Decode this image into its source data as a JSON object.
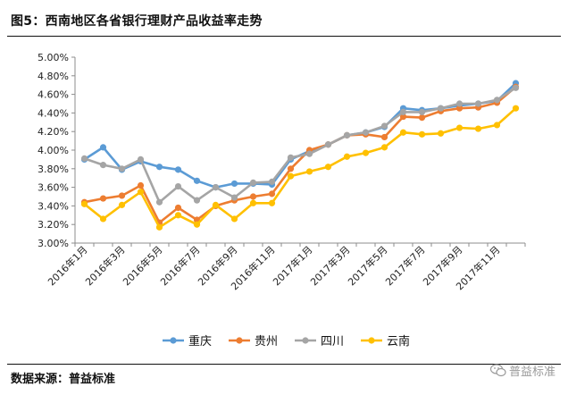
{
  "page": {
    "figure_title": "图5：西南地区各省银行理财产品收益率走势",
    "source_text": "数据来源：普益标准",
    "watermark_text": "普益标准"
  },
  "chart_data": {
    "type": "line",
    "title": "图5：西南地区各省银行理财产品收益率走势",
    "xlabel": "",
    "ylabel": "",
    "ylim": [
      3.0,
      5.0
    ],
    "yticks": [
      "3.00%",
      "3.20%",
      "3.40%",
      "3.60%",
      "3.80%",
      "4.00%",
      "4.20%",
      "4.40%",
      "4.60%",
      "4.80%",
      "5.00%"
    ],
    "grid": false,
    "legend": "bottom",
    "categories": [
      "2016年1月",
      "2016年2月",
      "2016年3月",
      "2016年4月",
      "2016年5月",
      "2016年6月",
      "2016年7月",
      "2016年8月",
      "2016年9月",
      "2016年10月",
      "2016年11月",
      "2016年12月",
      "2017年1月",
      "2017年2月",
      "2017年3月",
      "2017年4月",
      "2017年5月",
      "2017年6月",
      "2017年7月",
      "2017年8月",
      "2017年9月",
      "2017年10月",
      "2017年11月",
      "2017年12月"
    ],
    "xticks": [
      "2016年1月",
      "2016年3月",
      "2016年5月",
      "2016年7月",
      "2016年9月",
      "2016年11月",
      "2017年1月",
      "2017年3月",
      "2017年5月",
      "2017年7月",
      "2017年9月",
      "2017年11月"
    ],
    "series": [
      {
        "name": "重庆",
        "color": "#5b9bd5",
        "values": [
          3.9,
          4.03,
          3.79,
          3.88,
          3.82,
          3.79,
          3.67,
          3.6,
          3.64,
          3.64,
          3.63,
          3.9,
          3.99,
          4.06,
          4.16,
          4.19,
          4.25,
          4.45,
          4.43,
          4.45,
          4.48,
          4.5,
          4.53,
          4.72
        ]
      },
      {
        "name": "贵州",
        "color": "#ed7d31",
        "values": [
          3.44,
          3.48,
          3.51,
          3.62,
          3.22,
          3.38,
          3.25,
          3.4,
          3.46,
          3.5,
          3.53,
          3.8,
          4.0,
          4.06,
          4.16,
          4.17,
          4.14,
          4.36,
          4.35,
          4.42,
          4.45,
          4.46,
          4.51,
          4.68
        ]
      },
      {
        "name": "四川",
        "color": "#a5a5a5",
        "values": [
          3.91,
          3.84,
          3.8,
          3.9,
          3.44,
          3.61,
          3.46,
          3.6,
          3.49,
          3.65,
          3.66,
          3.92,
          3.96,
          4.06,
          4.16,
          4.19,
          4.26,
          4.41,
          4.41,
          4.45,
          4.5,
          4.5,
          4.54,
          4.67
        ]
      },
      {
        "name": "云南",
        "color": "#ffc000",
        "values": [
          3.42,
          3.26,
          3.41,
          3.55,
          3.17,
          3.3,
          3.2,
          3.41,
          3.26,
          3.43,
          3.43,
          3.72,
          3.77,
          3.82,
          3.93,
          3.97,
          4.03,
          4.19,
          4.17,
          4.18,
          4.24,
          4.23,
          4.27,
          4.45
        ]
      }
    ]
  }
}
